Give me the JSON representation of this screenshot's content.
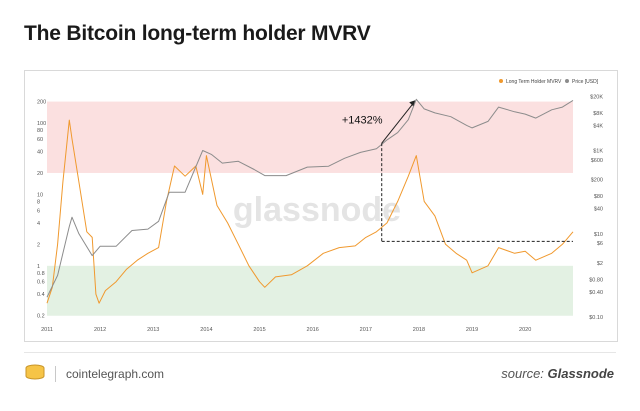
{
  "header": {
    "title": "The Bitcoin long-term holder MVRV"
  },
  "footer": {
    "site": "cointelegraph.com",
    "source_prefix": "source: ",
    "source_name": "Glassnode"
  },
  "watermark": "glassnode",
  "annotation": {
    "text": "+1432%"
  },
  "colors": {
    "mvrv": "#f0992e",
    "price": "#8c8c8c",
    "band_top": "#fbe0e0",
    "band_bottom": "#e3f1e3",
    "tick": "#555555"
  },
  "chart_data": {
    "type": "line",
    "title": "",
    "legend": {
      "placement": "top-right",
      "entries": [
        "Long Term Holder MVRV",
        "Price [USD]"
      ]
    },
    "x_ticks": [
      "2011",
      "2012",
      "2013",
      "2014",
      "2015",
      "2016",
      "2017",
      "2018",
      "2019",
      "2020"
    ],
    "xlim": [
      2011.0,
      2020.9
    ],
    "left_axis": {
      "scale": "log",
      "ylim": [
        0.18,
        300
      ],
      "ticks": [
        "0.2",
        "0.4",
        "0.6",
        "0.8",
        "1",
        "2",
        "4",
        "6",
        "8",
        "10",
        "20",
        "40",
        "60",
        "80",
        "100",
        "200"
      ]
    },
    "right_axis": {
      "scale": "log",
      "unit": "USD",
      "ylim": [
        0.09,
        30000
      ],
      "ticks": [
        "$0.10",
        "$0.40",
        "$0.80",
        "$2",
        "$6",
        "$10",
        "$40",
        "$80",
        "$200",
        "$600",
        "$1K",
        "$4K",
        "$8K",
        "$20K"
      ]
    },
    "bands": [
      {
        "name": "upper",
        "from": 20,
        "to": 200
      },
      {
        "name": "lower",
        "from": 0.2,
        "to": 1
      }
    ],
    "series": [
      {
        "name": "Long Term Holder MVRV",
        "axis": "left",
        "x": [
          2011.0,
          2011.1,
          2011.2,
          2011.3,
          2011.42,
          2011.47,
          2011.6,
          2011.75,
          2011.85,
          2011.92,
          2011.98,
          2012.1,
          2012.3,
          2012.5,
          2012.7,
          2012.9,
          2013.1,
          2013.25,
          2013.4,
          2013.6,
          2013.8,
          2013.93,
          2014.0,
          2014.2,
          2014.4,
          2014.6,
          2014.8,
          2015.0,
          2015.1,
          2015.3,
          2015.6,
          2015.9,
          2016.2,
          2016.5,
          2016.8,
          2017.0,
          2017.2,
          2017.4,
          2017.6,
          2017.8,
          2017.95,
          2018.1,
          2018.3,
          2018.5,
          2018.7,
          2018.9,
          2019.0,
          2019.3,
          2019.5,
          2019.8,
          2020.0,
          2020.2,
          2020.5,
          2020.7,
          2020.9
        ],
        "y": [
          0.3,
          0.5,
          2.0,
          15.0,
          110.0,
          60.0,
          15.0,
          3.0,
          2.5,
          0.4,
          0.3,
          0.45,
          0.6,
          0.9,
          1.2,
          1.5,
          1.8,
          8.0,
          25.0,
          18.0,
          25.0,
          10.0,
          35.0,
          7.0,
          4.0,
          2.0,
          1.0,
          0.6,
          0.5,
          0.7,
          0.75,
          1.0,
          1.5,
          1.8,
          1.9,
          2.5,
          3.0,
          4.0,
          8.0,
          18.0,
          35.0,
          8.0,
          5.0,
          2.0,
          1.5,
          1.2,
          0.8,
          1.0,
          1.8,
          1.5,
          1.6,
          1.2,
          1.5,
          2.0,
          3.0
        ]
      },
      {
        "name": "Price [USD]",
        "axis": "right",
        "x": [
          2011.0,
          2011.2,
          2011.42,
          2011.47,
          2011.6,
          2011.85,
          2012.0,
          2012.3,
          2012.6,
          2012.9,
          2013.1,
          2013.3,
          2013.6,
          2013.93,
          2014.1,
          2014.3,
          2014.6,
          2014.9,
          2015.1,
          2015.5,
          2015.9,
          2016.3,
          2016.6,
          2016.9,
          2017.2,
          2017.4,
          2017.6,
          2017.8,
          2017.95,
          2018.1,
          2018.3,
          2018.6,
          2018.9,
          2019.0,
          2019.3,
          2019.5,
          2019.8,
          2020.0,
          2020.2,
          2020.5,
          2020.7,
          2020.9
        ],
        "y": [
          0.3,
          1.0,
          15.0,
          25.0,
          10.0,
          3.0,
          5.0,
          5.0,
          12.0,
          13.0,
          20.0,
          100.0,
          100.0,
          1000.0,
          800.0,
          500.0,
          550.0,
          350.0,
          250.0,
          250.0,
          400.0,
          420.0,
          650.0,
          900.0,
          1100.0,
          1800.0,
          2700.0,
          5500.0,
          17000.0,
          10000.0,
          8000.0,
          6500.0,
          4000.0,
          3500.0,
          5000.0,
          11000.0,
          8500.0,
          7500.0,
          6000.0,
          9500.0,
          11000.0,
          16000.0
        ]
      }
    ]
  }
}
